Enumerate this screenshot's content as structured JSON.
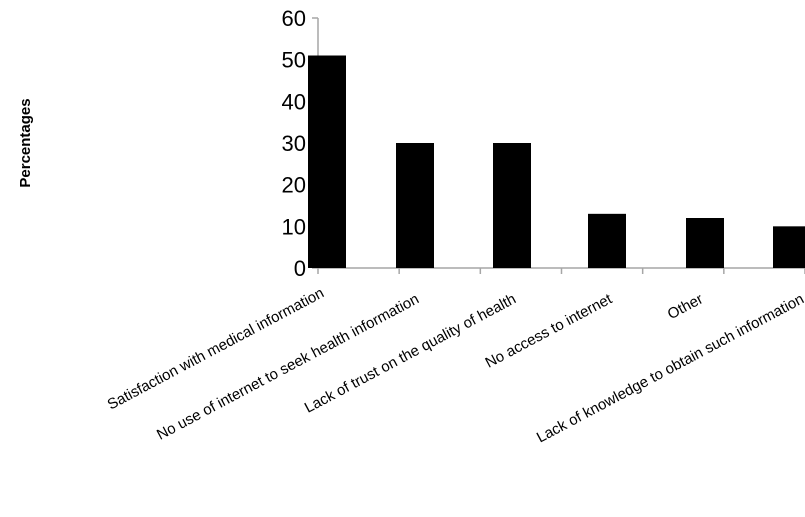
{
  "chart_data": {
    "type": "bar",
    "title": "",
    "xlabel": "",
    "ylabel": "Percentages",
    "ylim": [
      0,
      60
    ],
    "yticks": [
      "0",
      "10",
      "20",
      "30",
      "40",
      "50",
      "60"
    ],
    "categories": [
      "Satisfaction with medical information",
      "No use of internet to seek health information",
      "Lack of trust on the quality of health",
      "No access to internet",
      "Other",
      "Lack of knowledge to obtain such information"
    ],
    "values": [
      51,
      30,
      30,
      13,
      12,
      10
    ],
    "grid": false,
    "legend": "none",
    "colors": {
      "bar": "#000000",
      "axis": "#a6a6a6",
      "text": "#000000"
    }
  }
}
